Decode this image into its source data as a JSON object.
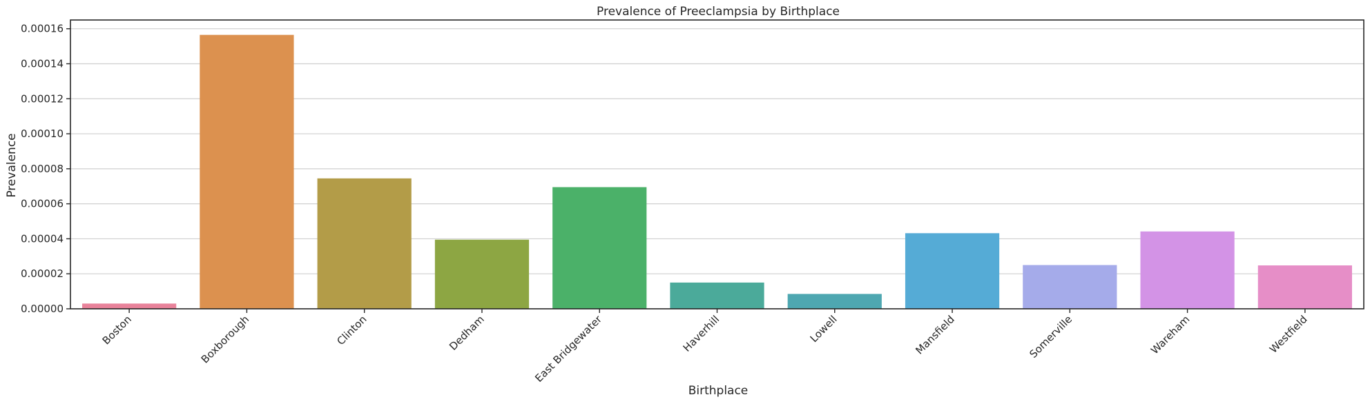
{
  "chart_data": {
    "type": "bar",
    "title": "Prevalence of Preeclampsia by Birthplace",
    "xlabel": "Birthplace",
    "ylabel": "Prevalence",
    "categories": [
      "Boston",
      "Boxborough",
      "Clinton",
      "Dedham",
      "East Bridgewater",
      "Haverhill",
      "Lowell",
      "Mansfield",
      "Somerville",
      "Wareham",
      "Westfield"
    ],
    "values": [
      3e-06,
      0.0001565,
      7.45e-05,
      3.95e-05,
      6.95e-05,
      1.5e-05,
      8.5e-06,
      4.32e-05,
      2.5e-05,
      4.42e-05,
      2.48e-05
    ],
    "colors": [
      "#e8829a",
      "#dc914f",
      "#b39c48",
      "#8da643",
      "#4bb169",
      "#4baa9a",
      "#4ea7b1",
      "#55abd6",
      "#a5abea",
      "#d393e6",
      "#e68ec7"
    ],
    "ylim": [
      0,
      0.000165
    ],
    "yticks": [
      "0.00000",
      "0.00002",
      "0.00004",
      "0.00006",
      "0.00008",
      "0.00010",
      "0.00012",
      "0.00014",
      "0.00016"
    ],
    "ytick_values": [
      0,
      2e-05,
      4e-05,
      6e-05,
      8e-05,
      0.0001,
      0.00012,
      0.00014,
      0.00016
    ],
    "grid": "horizontal",
    "legend": "none"
  }
}
